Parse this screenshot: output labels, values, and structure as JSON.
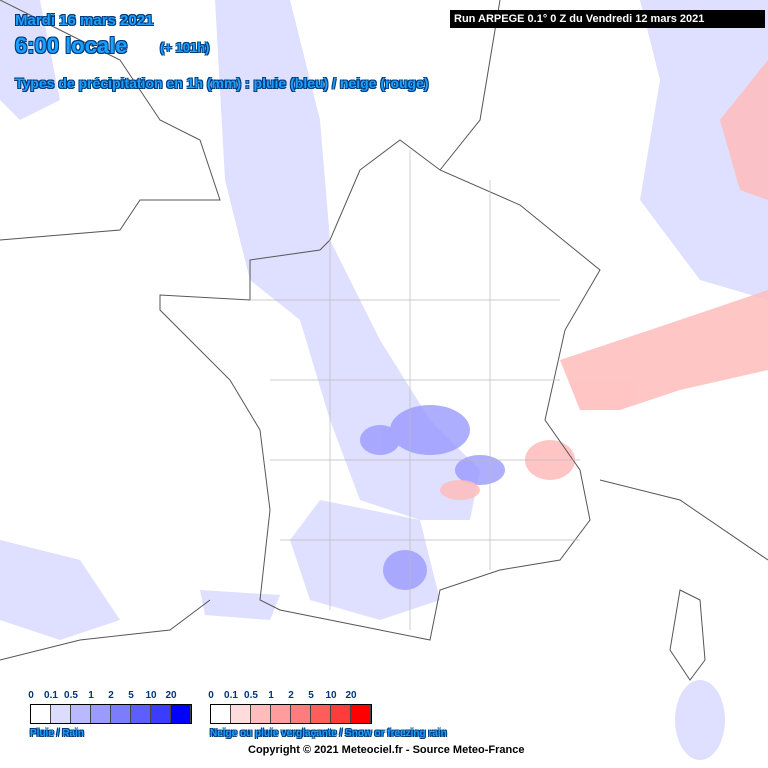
{
  "header": {
    "date": "Mardi 16 mars 2021",
    "time": "6:00 locale",
    "lead": "(+ 101h)",
    "subtitle": "Types de précipitation en 1h (mm) : pluie (bleu) / neige (rouge)",
    "run": "Run ARPEGE 0.1° 0 Z du Vendredi 12 mars 2021"
  },
  "legends": [
    {
      "caption": "Pluie / Rain",
      "labels": [
        0,
        0.1,
        0.5,
        1,
        2,
        5,
        10,
        20
      ],
      "colors": [
        "#ffffff",
        "#dcdcff",
        "#b9b9ff",
        "#9a9aff",
        "#7c7cff",
        "#5e5eff",
        "#3c3cff",
        "#0000ff"
      ]
    },
    {
      "caption": "Neige ou pluie verglaçante / Snow or freezing rain",
      "labels": [
        0,
        0.1,
        0.5,
        1,
        2,
        5,
        10,
        20
      ],
      "colors": [
        "#ffffff",
        "#ffdcdc",
        "#ffbcbc",
        "#ff9c9c",
        "#ff7c7c",
        "#ff5c5c",
        "#ff3c3c",
        "#ff0000"
      ]
    }
  ],
  "footer": "Copyright © 2021 Meteociel.fr - Source Meteo-France"
}
